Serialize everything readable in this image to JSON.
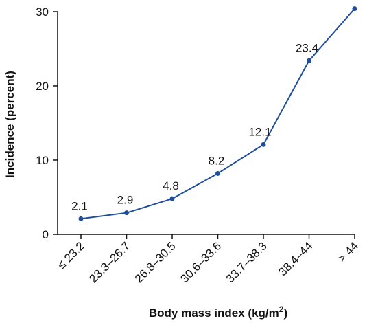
{
  "chart_data": {
    "type": "line",
    "categories": [
      "≤ 23.2",
      "23.3–26.7",
      "26.8–30.5",
      "30.6–33.6",
      "33.7–38.3",
      "38.4–44",
      "> 44"
    ],
    "series": [
      {
        "values": [
          2.1,
          2.9,
          4.8,
          8.2,
          12.1,
          23.4,
          30.4
        ]
      }
    ],
    "data_labels": [
      "2.1",
      "2.9",
      "4.8",
      "8.2",
      "12.1",
      "23.4",
      "30.4"
    ],
    "xlabel": "Body mass index (kg/m",
    "xlabel_superscript": "2",
    "xlabel_suffix": ")",
    "ylabel": "Incidence (percent)",
    "ylim": [
      0,
      30
    ],
    "yticks": [
      "0",
      "10",
      "20",
      "30"
    ],
    "grid": false,
    "line_color": "#1f4e9c"
  }
}
